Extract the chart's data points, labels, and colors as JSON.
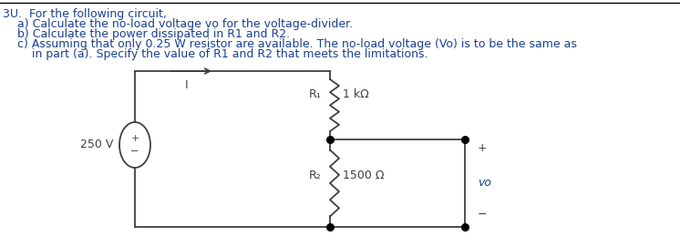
{
  "title_line": "3U.  For the following circuit,",
  "line_a": "    a) Calculate the no-load voltage vo for the voltage-divider.",
  "line_b": "    b) Calculate the power dissipated in R1 and R2.",
  "line_c": "    c) Assuming that only 0.25 W resistor are available. The no-load voltage (Vo) is to be the same as",
  "line_c2": "        in part (a). Specify the value of R1 and R2 that meets the limitations.",
  "source_voltage": "250 V",
  "R1_label": "R₁",
  "R1_value": "1 kΩ",
  "R2_label": "R₂",
  "R2_value": "1500 Ω",
  "vo_label": "vo",
  "current_label": "I",
  "text_color": "#1a3f8f",
  "circuit_color": "#404040",
  "bg_color": "#ffffff"
}
